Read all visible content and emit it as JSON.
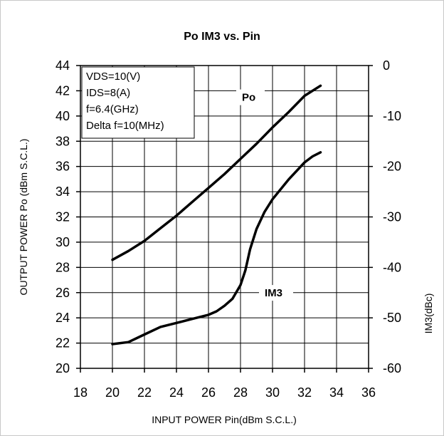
{
  "chart_data": {
    "type": "line",
    "title": "Po IM3 vs. Pin",
    "xlabel": "INPUT POWER Pin(dBm S.C.L.)",
    "ylabel": "OUTPUT POWER Po (dBm S.C.L.)",
    "y2label": "IM3(dBc)",
    "xlim": [
      18,
      36
    ],
    "ylim": [
      20,
      44
    ],
    "y2lim": [
      -60,
      0
    ],
    "x_ticks": [
      18,
      20,
      22,
      24,
      26,
      28,
      30,
      32,
      34,
      36
    ],
    "y_ticks": [
      20,
      22,
      24,
      26,
      28,
      30,
      32,
      34,
      36,
      38,
      40,
      42,
      44
    ],
    "y2_ticks": [
      0,
      -10,
      -20,
      -30,
      -40,
      -50,
      -60
    ],
    "grid": true,
    "conditions": [
      "VDS=10(V)",
      "IDS=8(A)",
      "f=6.4(GHz)",
      "Delta f=10(MHz)"
    ],
    "series": [
      {
        "name": "Po",
        "axis": "left",
        "x": [
          20,
          21,
          22,
          23,
          24,
          25,
          26,
          27,
          28,
          29,
          30,
          31,
          32,
          33
        ],
        "values": [
          28.6,
          29.3,
          30.1,
          31.1,
          32.1,
          33.2,
          34.3,
          35.4,
          36.6,
          37.8,
          39.1,
          40.3,
          41.6,
          42.4
        ]
      },
      {
        "name": "IM3",
        "axis": "right",
        "x": [
          20,
          21,
          22,
          23,
          24,
          25,
          26,
          26.5,
          27,
          27.5,
          28,
          28.3,
          28.6,
          29,
          29.5,
          30,
          31,
          32,
          32.5,
          33
        ],
        "values": [
          -55.2,
          -54.8,
          -53.3,
          -51.8,
          -51.0,
          -50.2,
          -49.4,
          -48.7,
          -47.6,
          -46.2,
          -43.5,
          -40.6,
          -36.4,
          -32.4,
          -29.0,
          -26.5,
          -22.6,
          -19.2,
          -18.0,
          -17.2
        ]
      }
    ]
  }
}
